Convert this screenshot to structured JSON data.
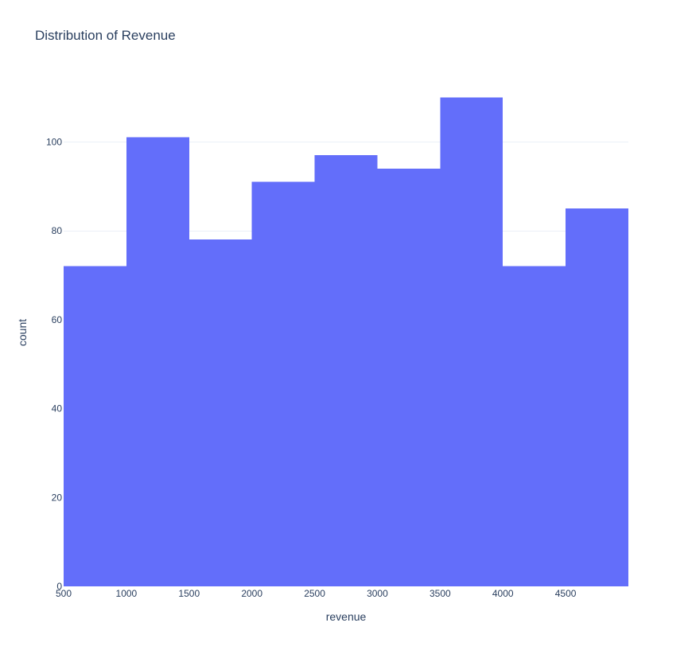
{
  "chart_data": {
    "type": "bar",
    "title": "Distribution of Revenue",
    "xlabel": "revenue",
    "ylabel": "count",
    "bin_edges": [
      500,
      1000,
      1500,
      2000,
      2500,
      3000,
      3500,
      4000,
      4500,
      5000
    ],
    "values": [
      72,
      101,
      78,
      91,
      97,
      94,
      110,
      72,
      85
    ],
    "xlim": [
      500,
      5000
    ],
    "ylim": [
      0,
      115.8
    ],
    "x_ticks": [
      500,
      1000,
      1500,
      2000,
      2500,
      3000,
      3500,
      4000,
      4500
    ],
    "y_ticks": [
      0,
      20,
      40,
      60,
      80,
      100
    ],
    "grid": "horizontal",
    "legend": "none",
    "bar_color": "#636efa",
    "text_color": "#2a3f5f",
    "grid_color": "#ebf0f8"
  }
}
